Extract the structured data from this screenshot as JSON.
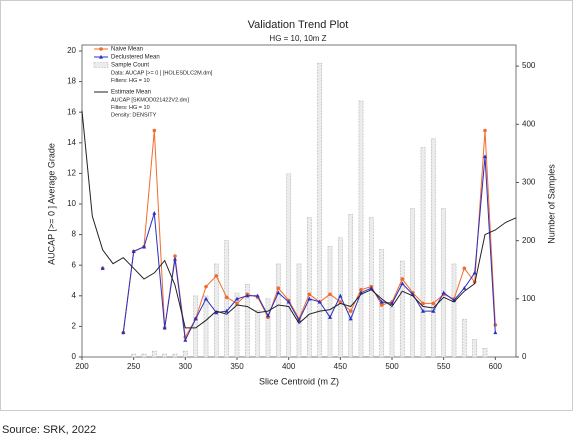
{
  "chart_data": {
    "type": "line",
    "title": "Validation Trend Plot",
    "subtitle": "HG = 10, 10m Z",
    "x_label": "Slice Centroid (m Z)",
    "y_label": "AUCAP [>= 0 ] Average Grade",
    "y2_label": "Number of Samples",
    "x": [
      200,
      210,
      220,
      230,
      240,
      250,
      260,
      270,
      280,
      290,
      300,
      310,
      320,
      330,
      340,
      350,
      360,
      370,
      380,
      390,
      400,
      410,
      420,
      430,
      440,
      450,
      460,
      470,
      480,
      490,
      500,
      510,
      520,
      530,
      540,
      550,
      560,
      570,
      580,
      590,
      600,
      610,
      620
    ],
    "xlim": [
      200,
      620
    ],
    "xticks": [
      200,
      250,
      300,
      350,
      400,
      450,
      500,
      550,
      600
    ],
    "ylim": [
      0,
      20
    ],
    "yticks": [
      0,
      2,
      4,
      6,
      8,
      10,
      12,
      14,
      16,
      18,
      20
    ],
    "y2lim": [
      0,
      526
    ],
    "y2ticks": [
      0,
      100,
      200,
      300,
      400,
      500
    ],
    "legend": "upper-left",
    "series": [
      {
        "name": "Naive Mean",
        "type": "line",
        "color": "#f26b2d",
        "marker": "circle",
        "values": [
          null,
          null,
          5.8,
          null,
          1.6,
          6.9,
          7.2,
          14.8,
          1.9,
          6.6,
          1.3,
          2.5,
          4.6,
          5.3,
          3.9,
          3.5,
          4.1,
          3.9,
          2.6,
          4.5,
          3.7,
          2.5,
          4.1,
          3.6,
          4.1,
          3.6,
          3.0,
          4.4,
          4.6,
          3.4,
          3.6,
          5.1,
          4.2,
          3.5,
          3.5,
          4.1,
          3.8,
          5.8,
          4.9,
          14.8,
          2.1,
          null,
          null
        ]
      },
      {
        "name": "Declustered Mean",
        "type": "line",
        "color": "#2a2fc4",
        "marker": "triangle",
        "values": [
          null,
          null,
          5.8,
          null,
          1.6,
          6.9,
          7.2,
          9.4,
          1.9,
          6.4,
          1.1,
          2.5,
          3.8,
          2.9,
          3.0,
          3.8,
          4.0,
          4.0,
          2.7,
          4.2,
          3.6,
          2.4,
          3.8,
          3.6,
          2.6,
          4.0,
          2.5,
          4.2,
          4.5,
          3.6,
          3.5,
          4.8,
          4.1,
          3.0,
          3.0,
          4.2,
          3.7,
          4.5,
          5.5,
          13.1,
          1.6,
          null,
          null
        ]
      },
      {
        "name": "Sample Count",
        "type": "bar",
        "axis": "y2",
        "color": "#ececec",
        "notes": [
          "Data: AUCAP [>= 0 ] [HOLESDLC2M.dm]",
          "Filters: HG = 10"
        ],
        "values": [
          0,
          0,
          0,
          0,
          0,
          5,
          5,
          10,
          5,
          5,
          10,
          105,
          105,
          160,
          200,
          110,
          125,
          80,
          100,
          160,
          315,
          160,
          240,
          505,
          190,
          205,
          245,
          440,
          240,
          185,
          85,
          165,
          255,
          360,
          375,
          255,
          160,
          65,
          30,
          15,
          0,
          0,
          0
        ]
      },
      {
        "name": "Estimate Mean",
        "type": "line",
        "color": "#222222",
        "marker": "none",
        "notes": [
          "AUCAP [SKMOD021422V2.dm]",
          "Filters: HG = 10",
          "Density: DENSITY"
        ],
        "values": [
          16.1,
          9.2,
          7.0,
          6.1,
          6.5,
          5.8,
          5.1,
          5.5,
          6.3,
          4.7,
          1.9,
          1.9,
          2.4,
          3.0,
          2.8,
          3.4,
          3.3,
          2.9,
          3.0,
          3.4,
          3.3,
          2.2,
          2.8,
          3.0,
          3.1,
          3.5,
          3.3,
          4.1,
          4.4,
          3.8,
          3.3,
          4.3,
          4.0,
          3.3,
          3.2,
          3.9,
          3.6,
          4.3,
          4.8,
          8.0,
          8.3,
          8.8,
          9.1
        ]
      }
    ],
    "source": "Source: SRK, 2022"
  }
}
